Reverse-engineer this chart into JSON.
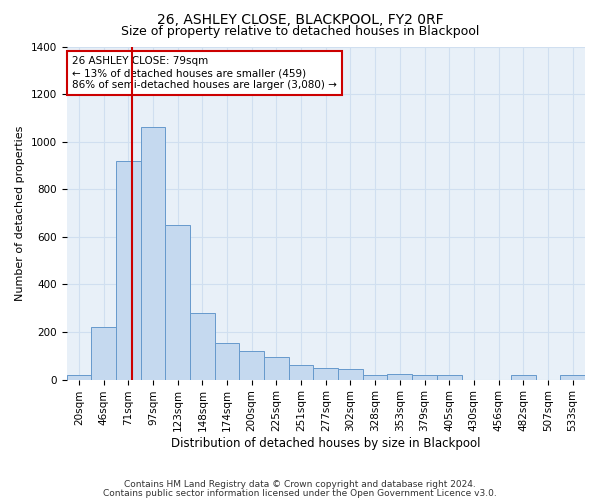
{
  "title": "26, ASHLEY CLOSE, BLACKPOOL, FY2 0RF",
  "subtitle": "Size of property relative to detached houses in Blackpool",
  "xlabel": "Distribution of detached houses by size in Blackpool",
  "ylabel": "Number of detached properties",
  "categories": [
    "20sqm",
    "46sqm",
    "71sqm",
    "97sqm",
    "123sqm",
    "148sqm",
    "174sqm",
    "200sqm",
    "225sqm",
    "251sqm",
    "277sqm",
    "302sqm",
    "328sqm",
    "353sqm",
    "379sqm",
    "405sqm",
    "430sqm",
    "456sqm",
    "482sqm",
    "507sqm",
    "533sqm"
  ],
  "values": [
    18,
    220,
    920,
    1060,
    650,
    280,
    155,
    120,
    95,
    60,
    50,
    45,
    20,
    25,
    20,
    18,
    0,
    0,
    18,
    0,
    18
  ],
  "bar_color": "#c5d9ef",
  "bar_edge_color": "#6699cc",
  "grid_color": "#d0dff0",
  "background_color": "#e8f0f8",
  "vline_color": "#cc0000",
  "vline_x_index": 2.15,
  "annotation_text": "26 ASHLEY CLOSE: 79sqm\n← 13% of detached houses are smaller (459)\n86% of semi-detached houses are larger (3,080) →",
  "annotation_box_edge_color": "#cc0000",
  "ylim": [
    0,
    1400
  ],
  "yticks": [
    0,
    200,
    400,
    600,
    800,
    1000,
    1200,
    1400
  ],
  "footer_line1": "Contains HM Land Registry data © Crown copyright and database right 2024.",
  "footer_line2": "Contains public sector information licensed under the Open Government Licence v3.0.",
  "title_fontsize": 10,
  "subtitle_fontsize": 9,
  "xlabel_fontsize": 8.5,
  "ylabel_fontsize": 8,
  "tick_fontsize": 7.5,
  "annotation_fontsize": 7.5,
  "footer_fontsize": 6.5
}
